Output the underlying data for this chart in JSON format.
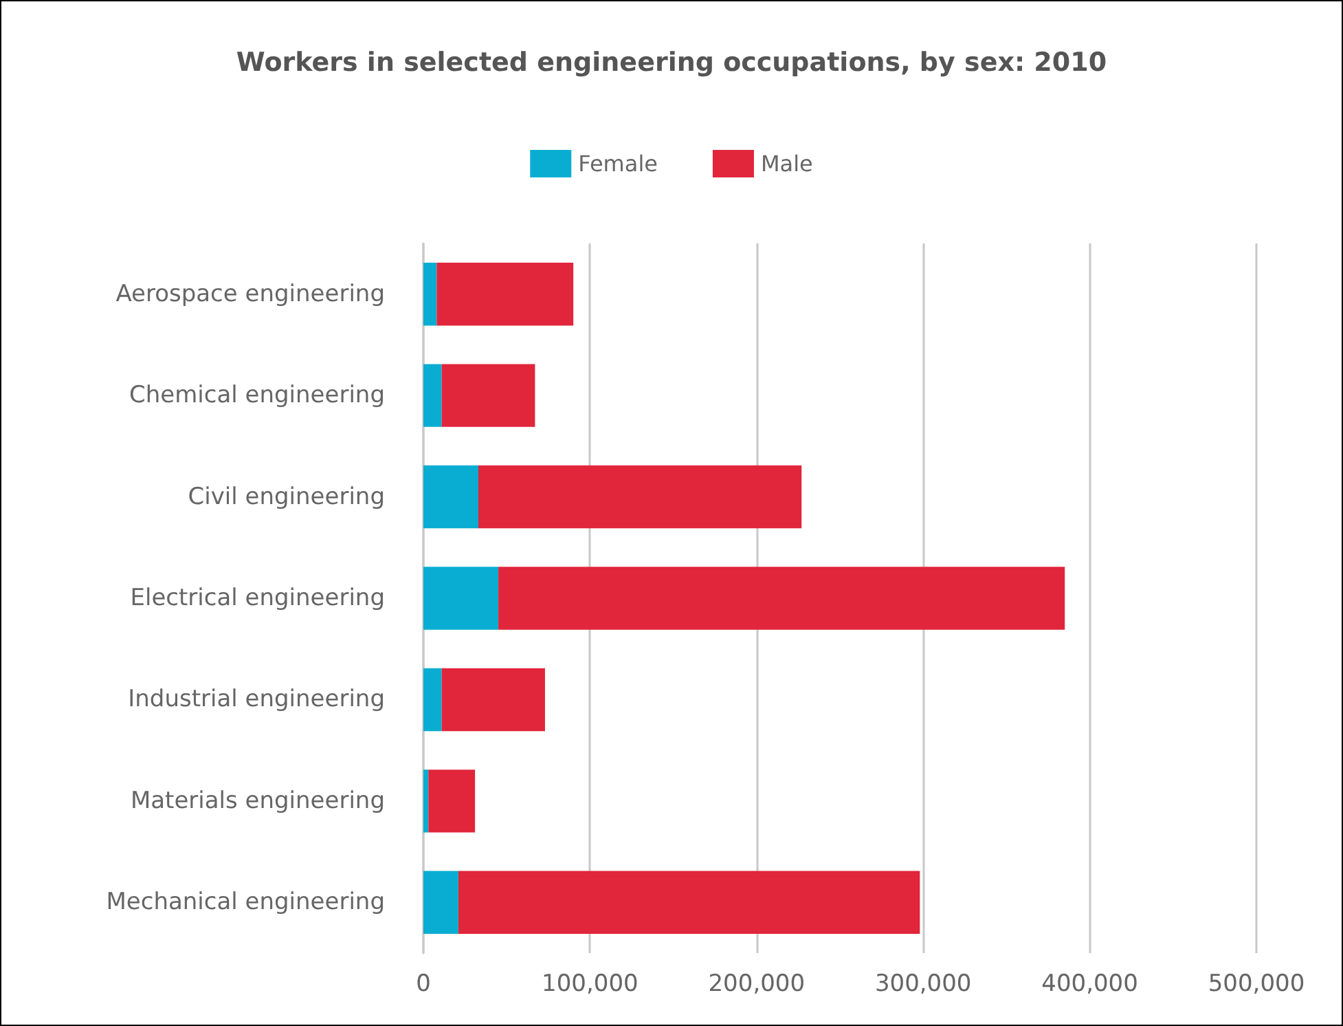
{
  "chart_data": {
    "type": "bar",
    "orientation": "horizontal",
    "stacked": true,
    "title": "Workers in selected engineering occupations, by sex: 2010",
    "categories": [
      "Aerospace engineering",
      "Chemical engineering",
      "Civil engineering",
      "Electrical engineering",
      "Industrial engineering",
      "Materials engineering",
      "Mechanical engineering"
    ],
    "series": [
      {
        "name": "Female",
        "color": "#0aadd2",
        "values": [
          8000,
          11000,
          33000,
          45000,
          11000,
          3000,
          21000
        ]
      },
      {
        "name": "Male",
        "color": "#e1253a",
        "values": [
          82000,
          56000,
          194000,
          340000,
          62000,
          28000,
          277000
        ]
      }
    ],
    "xlim": [
      0,
      500000
    ],
    "xticks": [
      0,
      {
        "value": 100000,
        "label": "100,000"
      },
      {
        "value": 200000,
        "label": "200,000"
      },
      {
        "value": 300000,
        "label": "300,000"
      },
      {
        "value": 400000,
        "label": "400,000"
      },
      {
        "value": 500000,
        "label": "500,000"
      }
    ],
    "grid": "x",
    "legend": "top"
  }
}
